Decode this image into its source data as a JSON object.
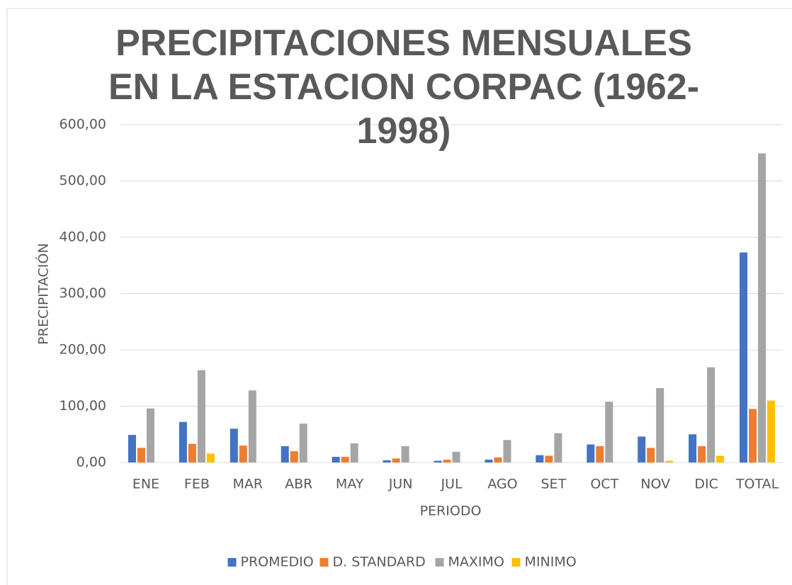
{
  "chart_data": {
    "type": "bar",
    "title": "PRECIPITACIONES MENSUALES EN LA ESTACION CORPAC (1962-1998)",
    "x_label": "PERIODO",
    "y_label": "PRECIPITACIÓN",
    "categories": [
      "ENE",
      "FEB",
      "MAR",
      "ABR",
      "MAY",
      "JUN",
      "JUL",
      "AGO",
      "SET",
      "OCT",
      "NOV",
      "DIC",
      "TOTAL"
    ],
    "series": [
      {
        "name": "PROMEDIO",
        "color": "#4472c4",
        "values": [
          49,
          72,
          60,
          29,
          10,
          4,
          3,
          5,
          13,
          32,
          46,
          50,
          373
        ]
      },
      {
        "name": "D. STANDARD",
        "color": "#ed7d31",
        "values": [
          26,
          33,
          30,
          20,
          10,
          7,
          5,
          9,
          12,
          29,
          26,
          29,
          95
        ]
      },
      {
        "name": "MAXIMO",
        "color": "#a5a5a5",
        "values": [
          96,
          164,
          128,
          69,
          34,
          29,
          19,
          40,
          52,
          108,
          132,
          169,
          549
        ]
      },
      {
        "name": "MINIMO",
        "color": "#ffc000",
        "values": [
          0,
          16,
          0,
          0,
          0,
          0,
          0,
          0,
          0,
          0,
          3,
          12,
          110
        ]
      }
    ],
    "ylim": [
      0,
      600
    ],
    "yticks": [
      {
        "value": 0,
        "label": "0,00"
      },
      {
        "value": 100,
        "label": "100,00"
      },
      {
        "value": 200,
        "label": "200,00"
      },
      {
        "value": 300,
        "label": "300,00"
      },
      {
        "value": 400,
        "label": "400,00"
      },
      {
        "value": 500,
        "label": "500,00"
      },
      {
        "value": 600,
        "label": "600,00"
      }
    ],
    "grid": true,
    "legend": "bottom"
  }
}
